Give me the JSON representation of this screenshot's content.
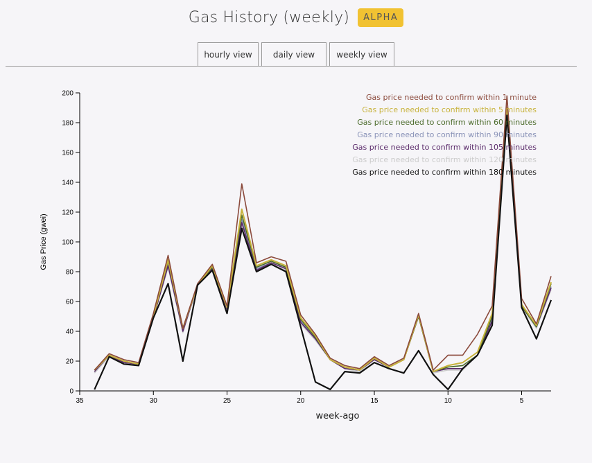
{
  "header": {
    "title": "Gas History (weekly)",
    "badge": "ALPHA"
  },
  "tabs": [
    {
      "label": "hourly view"
    },
    {
      "label": "daily view"
    },
    {
      "label": "weekly view"
    }
  ],
  "colors": {
    "accent_badge": "#f1c232",
    "series": [
      "#8b4a3c",
      "#c8b33c",
      "#4a6a2a",
      "#8a93b8",
      "#5a2a6a",
      "#cccccc",
      "#111111"
    ]
  },
  "chart_data": {
    "type": "line",
    "title": "",
    "xlabel": "week-ago",
    "ylabel": "Gas Price (gwei)",
    "xlim": [
      35,
      3
    ],
    "ylim": [
      0,
      200
    ],
    "xticks": [
      35,
      30,
      25,
      20,
      15,
      10,
      5
    ],
    "yticks": [
      0,
      20,
      40,
      60,
      80,
      100,
      120,
      140,
      160,
      180,
      200
    ],
    "legend_position": "top-right",
    "x": [
      34,
      33,
      32,
      31,
      30,
      29,
      28,
      27,
      26,
      25,
      24,
      23,
      22,
      21,
      20,
      19,
      18,
      17,
      16,
      15,
      14,
      13,
      12,
      11,
      10,
      9,
      8,
      7,
      6,
      5,
      4,
      3
    ],
    "series": [
      {
        "name": "Gas price needed to confirm within 1 minute",
        "values": [
          14,
          25,
          21,
          19,
          52,
          91,
          42,
          72,
          85,
          57,
          139,
          86,
          90,
          87,
          51,
          38,
          22,
          17,
          15,
          23,
          17,
          22,
          52,
          14,
          24,
          24,
          38,
          57,
          198,
          62,
          45,
          77
        ]
      },
      {
        "name": "Gas price needed to confirm within 5 minutes",
        "values": [
          14,
          24,
          20,
          18,
          50,
          88,
          42,
          71,
          84,
          56,
          122,
          84,
          88,
          84,
          49,
          37,
          21,
          16,
          14,
          22,
          16,
          21,
          51,
          13,
          17,
          19,
          26,
          52,
          190,
          58,
          44,
          73
        ]
      },
      {
        "name": "Gas price needed to confirm within 60 minutes",
        "values": [
          14,
          24,
          20,
          18,
          50,
          87,
          42,
          71,
          83,
          56,
          118,
          83,
          87,
          83,
          48,
          36,
          21,
          16,
          14,
          22,
          16,
          21,
          50,
          13,
          16,
          17,
          24,
          50,
          188,
          57,
          43,
          72
        ]
      },
      {
        "name": "Gas price needed to confirm within 90 minutes",
        "values": [
          13,
          24,
          19,
          18,
          49,
          85,
          41,
          71,
          82,
          55,
          115,
          82,
          86,
          82,
          47,
          35,
          21,
          15,
          14,
          21,
          16,
          21,
          50,
          13,
          15,
          15,
          24,
          48,
          186,
          57,
          43,
          70
        ]
      },
      {
        "name": "Gas price needed to confirm within 105 minutes",
        "values": [
          13,
          24,
          19,
          18,
          49,
          84,
          40,
          71,
          82,
          55,
          113,
          81,
          86,
          82,
          46,
          35,
          21,
          15,
          14,
          21,
          16,
          21,
          50,
          13,
          15,
          15,
          24,
          47,
          185,
          57,
          43,
          69
        ]
      },
      {
        "name": "Gas price needed to confirm within 120 minutes",
        "values": [
          12,
          23,
          19,
          18,
          49,
          83,
          39,
          71,
          81,
          54,
          112,
          81,
          85,
          81,
          45,
          34,
          21,
          15,
          13,
          21,
          16,
          21,
          50,
          12,
          14,
          14,
          24,
          46,
          185,
          56,
          42,
          68
        ]
      },
      {
        "name": "Gas price needed to confirm within 180 minutes",
        "values": [
          1,
          23,
          18,
          17,
          49,
          72,
          20,
          71,
          81,
          52,
          109,
          80,
          85,
          80,
          43,
          6,
          1,
          13,
          12,
          19,
          15,
          12,
          27,
          11,
          1,
          15,
          24,
          44,
          185,
          56,
          35,
          61
        ]
      }
    ]
  }
}
